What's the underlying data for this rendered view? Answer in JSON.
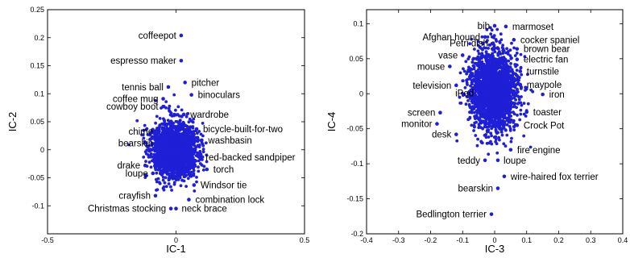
{
  "chart_data": [
    {
      "type": "scatter",
      "xlabel": "IC-1",
      "ylabel": "IC-2",
      "xlim": [
        -0.5,
        0.5
      ],
      "ylim": [
        -0.15,
        0.25
      ],
      "xticks": [
        "-0.5",
        "0",
        "0.5"
      ],
      "yticks": [
        "-0.1",
        "-0.05",
        "0",
        "0.05",
        "0.1",
        "0.15",
        "0.2",
        "0.25"
      ],
      "grid": false,
      "marker_color": "#1f1fd6",
      "cluster": {
        "center": [
          -0.005,
          0.0
        ],
        "spread": [
          0.05,
          0.028
        ],
        "count": 2100
      },
      "points": [
        {
          "label": "coffeepot",
          "x": 0.02,
          "y": 0.204
        },
        {
          "label": "espresso maker",
          "x": 0.02,
          "y": 0.159
        },
        {
          "label": "pitcher",
          "x": 0.035,
          "y": 0.12
        },
        {
          "label": "binoculars",
          "x": 0.06,
          "y": 0.098
        },
        {
          "label": "tennis ball",
          "x": -0.03,
          "y": 0.112
        },
        {
          "label": "coffee mug",
          "x": -0.05,
          "y": 0.091
        },
        {
          "label": "cowboy boot",
          "x": -0.05,
          "y": 0.077
        },
        {
          "label": "wardrobe",
          "x": 0.03,
          "y": 0.063
        },
        {
          "label": "bicycle-built-for-two",
          "x": 0.08,
          "y": 0.037
        },
        {
          "label": "chime",
          "x": -0.07,
          "y": 0.033
        },
        {
          "label": "washbasin",
          "x": 0.1,
          "y": 0.017
        },
        {
          "label": "bearskin",
          "x": -0.07,
          "y": 0.012
        },
        {
          "label": "red-backed sandpiper",
          "x": 0.09,
          "y": -0.013
        },
        {
          "label": "drake",
          "x": -0.12,
          "y": -0.028
        },
        {
          "label": "torch",
          "x": 0.12,
          "y": -0.035
        },
        {
          "label": "loupe",
          "x": -0.09,
          "y": -0.042
        },
        {
          "label": "Windsor tie",
          "x": 0.07,
          "y": -0.063
        },
        {
          "label": "crayfish",
          "x": -0.08,
          "y": -0.082
        },
        {
          "label": "combination lock",
          "x": 0.05,
          "y": -0.089
        },
        {
          "label": "Christmas stocking",
          "x": -0.02,
          "y": -0.105
        },
        {
          "label": "neck brace",
          "x": 0.0,
          "y": -0.105
        }
      ]
    },
    {
      "type": "scatter",
      "xlabel": "IC-3",
      "ylabel": "IC-4",
      "xlim": [
        -0.4,
        0.4
      ],
      "ylim": [
        -0.2,
        0.12
      ],
      "xticks": [
        "-0.4",
        "-0.3",
        "-0.2",
        "-0.1",
        "0",
        "0.1",
        "0.2",
        "0.3",
        "0.4"
      ],
      "yticks": [
        "-0.2",
        "-0.15",
        "-0.1",
        "-0.05",
        "0",
        "0.05",
        "0.1"
      ],
      "grid": false,
      "marker_color": "#1f1fd6",
      "cluster": {
        "center": [
          -0.005,
          0.004
        ],
        "spread": [
          0.042,
          0.033
        ],
        "count": 2100
      },
      "points": [
        {
          "label": "bib",
          "x": 0.0,
          "y": 0.097
        },
        {
          "label": "marmoset",
          "x": 0.035,
          "y": 0.096
        },
        {
          "label": "Afghan hound",
          "x": -0.03,
          "y": 0.081
        },
        {
          "label": "Petri dish",
          "x": -0.005,
          "y": 0.072
        },
        {
          "label": "cocker spaniel",
          "x": 0.06,
          "y": 0.077
        },
        {
          "label": "brown bear",
          "x": 0.07,
          "y": 0.064
        },
        {
          "label": "vase",
          "x": -0.1,
          "y": 0.055
        },
        {
          "label": "electric fan",
          "x": 0.07,
          "y": 0.049
        },
        {
          "label": "mouse",
          "x": -0.14,
          "y": 0.039
        },
        {
          "label": "turnstile",
          "x": 0.08,
          "y": 0.032
        },
        {
          "label": "television",
          "x": -0.12,
          "y": 0.012
        },
        {
          "label": "maypole",
          "x": 0.08,
          "y": 0.013
        },
        {
          "label": "iPod",
          "x": -0.05,
          "y": 0.001
        },
        {
          "label": "iron",
          "x": 0.15,
          "y": -0.001
        },
        {
          "label": "screen",
          "x": -0.17,
          "y": -0.027
        },
        {
          "label": "toaster",
          "x": 0.1,
          "y": -0.026
        },
        {
          "label": "monitor",
          "x": -0.18,
          "y": -0.043
        },
        {
          "label": "Crock Pot",
          "x": 0.07,
          "y": -0.045
        },
        {
          "label": "desk",
          "x": -0.12,
          "y": -0.058
        },
        {
          "label": "fire engine",
          "x": 0.05,
          "y": -0.08
        },
        {
          "label": "teddy",
          "x": -0.03,
          "y": -0.095
        },
        {
          "label": "loupe",
          "x": 0.01,
          "y": -0.095
        },
        {
          "label": "wire-haired fox terrier",
          "x": 0.03,
          "y": -0.118
        },
        {
          "label": "bearskin",
          "x": 0.01,
          "y": -0.135
        },
        {
          "label": "Bedlington terrier",
          "x": -0.01,
          "y": -0.172
        }
      ]
    }
  ]
}
